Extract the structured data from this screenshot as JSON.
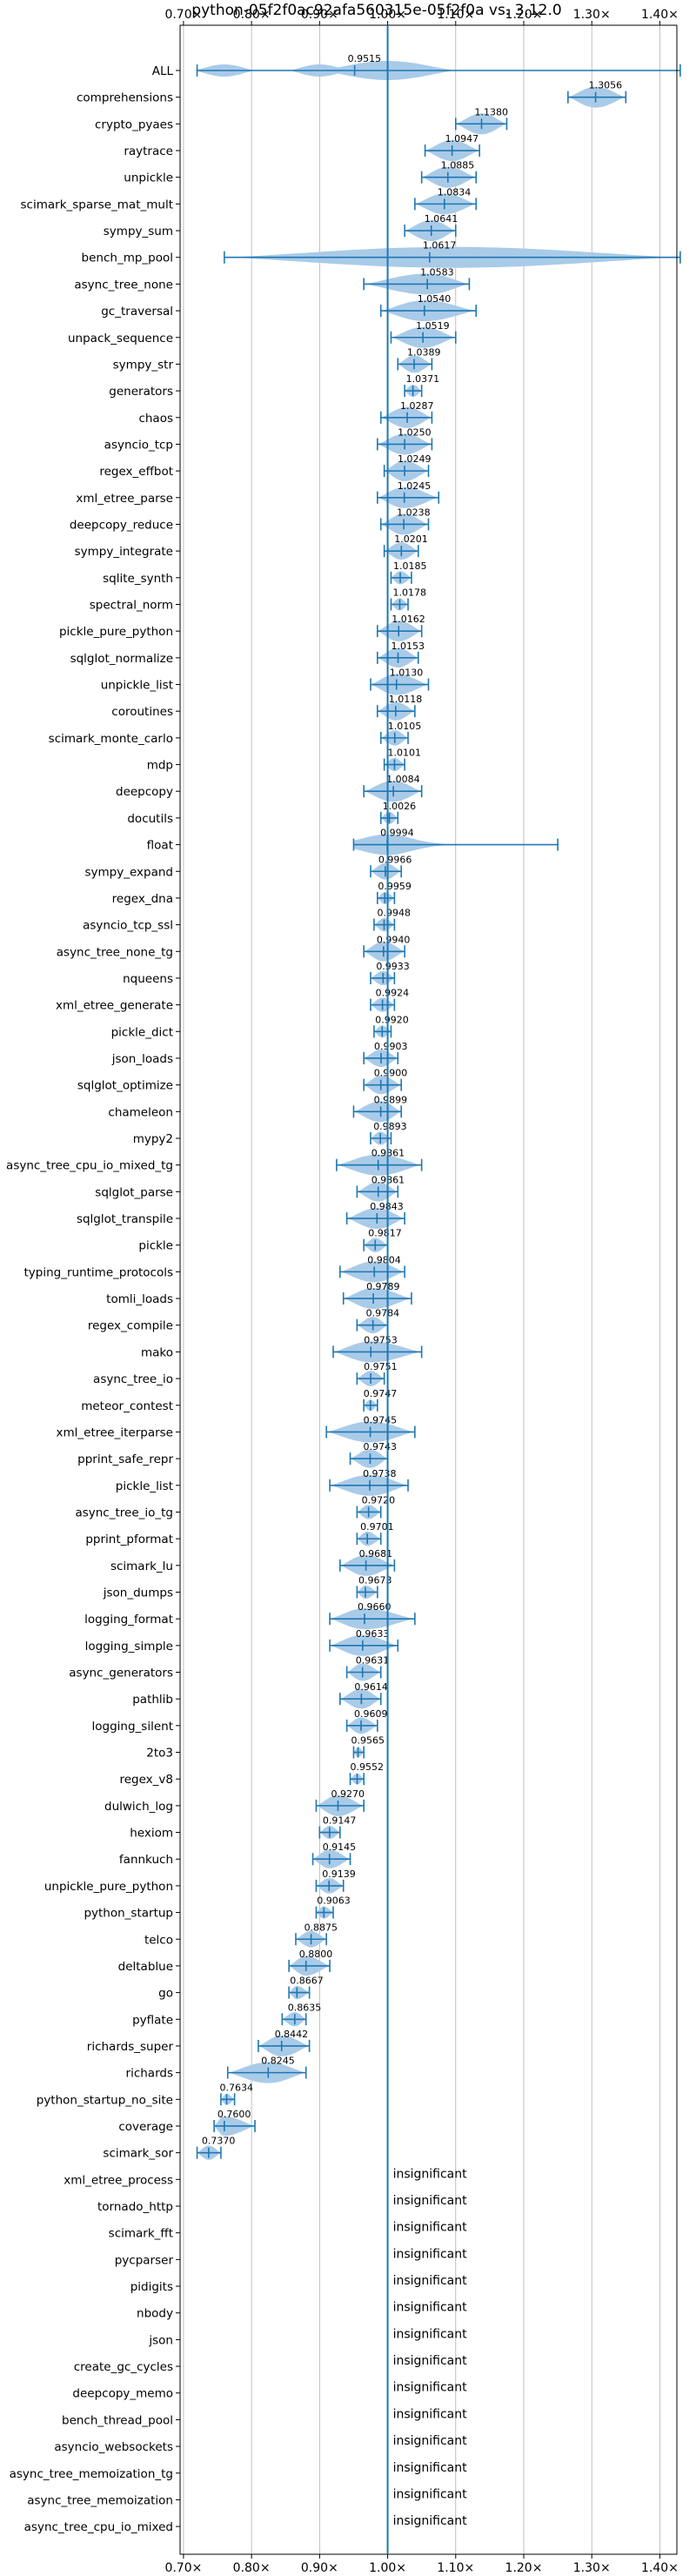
{
  "chart_data": {
    "type": "violin",
    "title": "python-05f2f0ac92afa560315e-05f2f0a vs. 3.12.0",
    "xlabel": "",
    "ylabel": "",
    "xlim": [
      0.695,
      1.425
    ],
    "x_ticks": [
      0.7,
      0.8,
      0.9,
      1.0,
      1.1,
      1.2,
      1.3,
      1.4
    ],
    "x_tick_labels": [
      "0.70×",
      "0.80×",
      "0.90×",
      "1.00×",
      "1.10×",
      "1.20×",
      "1.30×",
      "1.40×"
    ],
    "grid": true,
    "reference_line": 1.0,
    "colors": {
      "violin": "#a9cbe8",
      "line": "#1f77b4",
      "grid": "#b0b0b0"
    },
    "insignificant_label": "insignificant",
    "benchmarks": [
      {
        "name": "ALL",
        "value": 0.9515,
        "min": 0.72,
        "max": 1.43,
        "modes": [
          0.76,
          0.9,
          1.0
        ]
      },
      {
        "name": "comprehensions",
        "value": 1.3056,
        "min": 1.265,
        "max": 1.35
      },
      {
        "name": "crypto_pyaes",
        "value": 1.138,
        "min": 1.1,
        "max": 1.175
      },
      {
        "name": "raytrace",
        "value": 1.0947,
        "min": 1.055,
        "max": 1.135
      },
      {
        "name": "unpickle",
        "value": 1.0885,
        "min": 1.05,
        "max": 1.13
      },
      {
        "name": "scimark_sparse_mat_mult",
        "value": 1.0834,
        "min": 1.04,
        "max": 1.13
      },
      {
        "name": "sympy_sum",
        "value": 1.0641,
        "min": 1.025,
        "max": 1.1
      },
      {
        "name": "bench_mp_pool",
        "value": 1.0617,
        "min": 0.76,
        "max": 1.43
      },
      {
        "name": "async_tree_none",
        "value": 1.0583,
        "min": 0.965,
        "max": 1.12
      },
      {
        "name": "gc_traversal",
        "value": 1.054,
        "min": 0.99,
        "max": 1.13
      },
      {
        "name": "unpack_sequence",
        "value": 1.0519,
        "min": 1.005,
        "max": 1.1
      },
      {
        "name": "sympy_str",
        "value": 1.0389,
        "min": 1.015,
        "max": 1.065
      },
      {
        "name": "generators",
        "value": 1.0371,
        "min": 1.025,
        "max": 1.05
      },
      {
        "name": "chaos",
        "value": 1.0287,
        "min": 0.99,
        "max": 1.065
      },
      {
        "name": "asyncio_tcp",
        "value": 1.025,
        "min": 0.985,
        "max": 1.065
      },
      {
        "name": "regex_effbot",
        "value": 1.0249,
        "min": 0.995,
        "max": 1.06
      },
      {
        "name": "xml_etree_parse",
        "value": 1.0245,
        "min": 0.985,
        "max": 1.075
      },
      {
        "name": "deepcopy_reduce",
        "value": 1.0238,
        "min": 0.99,
        "max": 1.06
      },
      {
        "name": "sympy_integrate",
        "value": 1.0201,
        "min": 0.995,
        "max": 1.045
      },
      {
        "name": "sqlite_synth",
        "value": 1.0185,
        "min": 1.005,
        "max": 1.035
      },
      {
        "name": "spectral_norm",
        "value": 1.0178,
        "min": 1.005,
        "max": 1.03
      },
      {
        "name": "pickle_pure_python",
        "value": 1.0162,
        "min": 0.985,
        "max": 1.05
      },
      {
        "name": "sqlglot_normalize",
        "value": 1.0153,
        "min": 0.985,
        "max": 1.045
      },
      {
        "name": "unpickle_list",
        "value": 1.013,
        "min": 0.975,
        "max": 1.06
      },
      {
        "name": "coroutines",
        "value": 1.0118,
        "min": 0.985,
        "max": 1.04
      },
      {
        "name": "scimark_monte_carlo",
        "value": 1.0105,
        "min": 0.99,
        "max": 1.03
      },
      {
        "name": "mdp",
        "value": 1.0101,
        "min": 0.995,
        "max": 1.025
      },
      {
        "name": "deepcopy",
        "value": 1.0084,
        "min": 0.965,
        "max": 1.05
      },
      {
        "name": "docutils",
        "value": 1.0026,
        "min": 0.99,
        "max": 1.015
      },
      {
        "name": "float",
        "value": 0.9994,
        "min": 0.95,
        "max": 1.25,
        "skewed": true
      },
      {
        "name": "sympy_expand",
        "value": 0.9966,
        "min": 0.975,
        "max": 1.02
      },
      {
        "name": "regex_dna",
        "value": 0.9959,
        "min": 0.985,
        "max": 1.01
      },
      {
        "name": "asyncio_tcp_ssl",
        "value": 0.9948,
        "min": 0.98,
        "max": 1.01
      },
      {
        "name": "async_tree_none_tg",
        "value": 0.994,
        "min": 0.965,
        "max": 1.025
      },
      {
        "name": "nqueens",
        "value": 0.9933,
        "min": 0.975,
        "max": 1.01
      },
      {
        "name": "xml_etree_generate",
        "value": 0.9924,
        "min": 0.975,
        "max": 1.01
      },
      {
        "name": "pickle_dict",
        "value": 0.992,
        "min": 0.98,
        "max": 1.005
      },
      {
        "name": "json_loads",
        "value": 0.9903,
        "min": 0.965,
        "max": 1.015
      },
      {
        "name": "sqlglot_optimize",
        "value": 0.99,
        "min": 0.965,
        "max": 1.02
      },
      {
        "name": "chameleon",
        "value": 0.9899,
        "min": 0.95,
        "max": 1.02
      },
      {
        "name": "mypy2",
        "value": 0.9893,
        "min": 0.975,
        "max": 1.005
      },
      {
        "name": "async_tree_cpu_io_mixed_tg",
        "value": 0.9861,
        "min": 0.925,
        "max": 1.05
      },
      {
        "name": "sqlglot_parse",
        "value": 0.9861,
        "min": 0.955,
        "max": 1.015
      },
      {
        "name": "sqlglot_transpile",
        "value": 0.9843,
        "min": 0.94,
        "max": 1.025
      },
      {
        "name": "pickle",
        "value": 0.9817,
        "min": 0.965,
        "max": 1.0
      },
      {
        "name": "typing_runtime_protocols",
        "value": 0.9804,
        "min": 0.93,
        "max": 1.025
      },
      {
        "name": "tomli_loads",
        "value": 0.9789,
        "min": 0.935,
        "max": 1.035
      },
      {
        "name": "regex_compile",
        "value": 0.9784,
        "min": 0.955,
        "max": 1.0
      },
      {
        "name": "mako",
        "value": 0.9753,
        "min": 0.92,
        "max": 1.05
      },
      {
        "name": "async_tree_io",
        "value": 0.9751,
        "min": 0.955,
        "max": 0.995
      },
      {
        "name": "meteor_contest",
        "value": 0.9747,
        "min": 0.965,
        "max": 0.985
      },
      {
        "name": "xml_etree_iterparse",
        "value": 0.9745,
        "min": 0.91,
        "max": 1.04
      },
      {
        "name": "pprint_safe_repr",
        "value": 0.9743,
        "min": 0.945,
        "max": 1.0
      },
      {
        "name": "pickle_list",
        "value": 0.9738,
        "min": 0.915,
        "max": 1.03
      },
      {
        "name": "async_tree_io_tg",
        "value": 0.972,
        "min": 0.955,
        "max": 0.99
      },
      {
        "name": "pprint_pformat",
        "value": 0.9701,
        "min": 0.955,
        "max": 0.99
      },
      {
        "name": "scimark_lu",
        "value": 0.9681,
        "min": 0.93,
        "max": 1.01
      },
      {
        "name": "json_dumps",
        "value": 0.9673,
        "min": 0.955,
        "max": 0.985
      },
      {
        "name": "logging_format",
        "value": 0.966,
        "min": 0.915,
        "max": 1.04
      },
      {
        "name": "logging_simple",
        "value": 0.9633,
        "min": 0.915,
        "max": 1.015
      },
      {
        "name": "async_generators",
        "value": 0.9631,
        "min": 0.94,
        "max": 0.99
      },
      {
        "name": "pathlib",
        "value": 0.9614,
        "min": 0.93,
        "max": 0.99
      },
      {
        "name": "logging_silent",
        "value": 0.9609,
        "min": 0.94,
        "max": 0.985
      },
      {
        "name": "2to3",
        "value": 0.9565,
        "min": 0.95,
        "max": 0.965
      },
      {
        "name": "regex_v8",
        "value": 0.9552,
        "min": 0.945,
        "max": 0.965
      },
      {
        "name": "dulwich_log",
        "value": 0.927,
        "min": 0.895,
        "max": 0.965
      },
      {
        "name": "hexiom",
        "value": 0.9147,
        "min": 0.9,
        "max": 0.93
      },
      {
        "name": "fannkuch",
        "value": 0.9145,
        "min": 0.89,
        "max": 0.945
      },
      {
        "name": "unpickle_pure_python",
        "value": 0.9139,
        "min": 0.895,
        "max": 0.935
      },
      {
        "name": "python_startup",
        "value": 0.9063,
        "min": 0.895,
        "max": 0.92
      },
      {
        "name": "telco",
        "value": 0.8875,
        "min": 0.865,
        "max": 0.91
      },
      {
        "name": "deltablue",
        "value": 0.88,
        "min": 0.855,
        "max": 0.915
      },
      {
        "name": "go",
        "value": 0.8667,
        "min": 0.855,
        "max": 0.885
      },
      {
        "name": "pyflate",
        "value": 0.8635,
        "min": 0.845,
        "max": 0.88
      },
      {
        "name": "richards_super",
        "value": 0.8442,
        "min": 0.81,
        "max": 0.885
      },
      {
        "name": "richards",
        "value": 0.8245,
        "min": 0.765,
        "max": 0.88
      },
      {
        "name": "python_startup_no_site",
        "value": 0.7634,
        "min": 0.755,
        "max": 0.775
      },
      {
        "name": "coverage",
        "value": 0.76,
        "min": 0.745,
        "max": 0.805
      },
      {
        "name": "scimark_sor",
        "value": 0.737,
        "min": 0.72,
        "max": 0.755
      },
      {
        "name": "xml_etree_process",
        "insignificant": true
      },
      {
        "name": "tornado_http",
        "insignificant": true
      },
      {
        "name": "scimark_fft",
        "insignificant": true
      },
      {
        "name": "pycparser",
        "insignificant": true
      },
      {
        "name": "pidigits",
        "insignificant": true
      },
      {
        "name": "nbody",
        "insignificant": true
      },
      {
        "name": "json",
        "insignificant": true
      },
      {
        "name": "create_gc_cycles",
        "insignificant": true
      },
      {
        "name": "deepcopy_memo",
        "insignificant": true
      },
      {
        "name": "bench_thread_pool",
        "insignificant": true
      },
      {
        "name": "asyncio_websockets",
        "insignificant": true
      },
      {
        "name": "async_tree_memoization_tg",
        "insignificant": true
      },
      {
        "name": "async_tree_memoization",
        "insignificant": true
      },
      {
        "name": "async_tree_cpu_io_mixed",
        "insignificant": true
      }
    ]
  }
}
